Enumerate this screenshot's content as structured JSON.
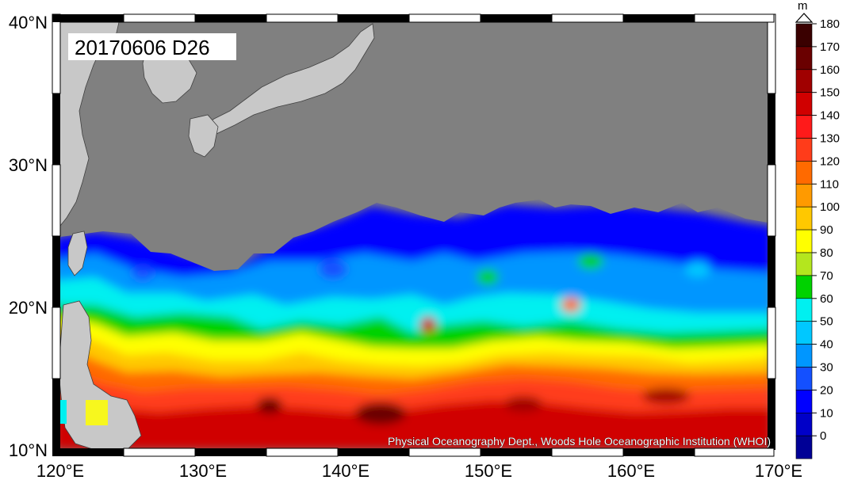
{
  "map": {
    "title": "20170606 D26",
    "credit": "Physical Oceanography Dept., Woods Hole Oceanographic Institution (WHOI)",
    "lat_labels": [
      "40°N",
      "30°N",
      "20°N",
      "10°N"
    ],
    "lon_labels": [
      "120°E",
      "130°E",
      "140°E",
      "150°E",
      "160°E",
      "170°E"
    ],
    "land_color": "#808080",
    "landmass_color": "#c8c8c8"
  },
  "colorbar": {
    "unit": "m",
    "ticks": [
      "180",
      "170",
      "160",
      "150",
      "140",
      "130",
      "120",
      "110",
      "100",
      "90",
      "80",
      "70",
      "60",
      "50",
      "40",
      "30",
      "20",
      "10",
      "0"
    ],
    "colors": [
      "#3a0000",
      "#6a0000",
      "#a00000",
      "#d00000",
      "#ff1a1a",
      "#ff3c1a",
      "#ff6a00",
      "#ff9a00",
      "#ffc800",
      "#ffff00",
      "#b4e61e",
      "#00d200",
      "#00f0f0",
      "#00c8ff",
      "#0096ff",
      "#1450ff",
      "#0000ff",
      "#0000c8",
      "#000096"
    ]
  }
}
